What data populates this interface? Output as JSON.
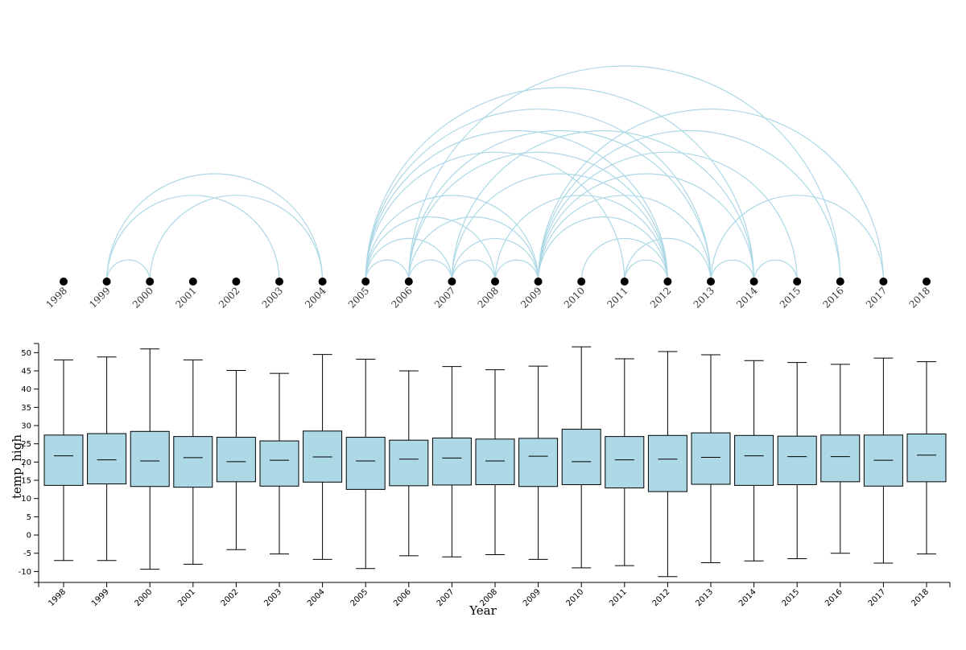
{
  "chart_data": [
    {
      "type": "arc",
      "nodes": [
        "1998",
        "1999",
        "2000",
        "2001",
        "2002",
        "2003",
        "2004",
        "2005",
        "2006",
        "2007",
        "2008",
        "2009",
        "2010",
        "2011",
        "2012",
        "2013",
        "2014",
        "2015",
        "2016",
        "2017",
        "2018"
      ],
      "links": [
        [
          "1999",
          "2000"
        ],
        [
          "1999",
          "2003"
        ],
        [
          "1999",
          "2004"
        ],
        [
          "2000",
          "2004"
        ],
        [
          "2005",
          "2006"
        ],
        [
          "2005",
          "2007"
        ],
        [
          "2005",
          "2008"
        ],
        [
          "2005",
          "2009"
        ],
        [
          "2005",
          "2011"
        ],
        [
          "2005",
          "2012"
        ],
        [
          "2005",
          "2013"
        ],
        [
          "2005",
          "2014"
        ],
        [
          "2006",
          "2007"
        ],
        [
          "2006",
          "2009"
        ],
        [
          "2006",
          "2012"
        ],
        [
          "2006",
          "2013"
        ],
        [
          "2006",
          "2016"
        ],
        [
          "2007",
          "2008"
        ],
        [
          "2007",
          "2009"
        ],
        [
          "2007",
          "2012"
        ],
        [
          "2007",
          "2014"
        ],
        [
          "2008",
          "2009"
        ],
        [
          "2008",
          "2012"
        ],
        [
          "2009",
          "2012"
        ],
        [
          "2009",
          "2013"
        ],
        [
          "2009",
          "2014"
        ],
        [
          "2009",
          "2015"
        ],
        [
          "2009",
          "2016"
        ],
        [
          "2009",
          "2017"
        ],
        [
          "2010",
          "2012"
        ],
        [
          "2011",
          "2012"
        ],
        [
          "2011",
          "2013"
        ],
        [
          "2013",
          "2014"
        ],
        [
          "2013",
          "2017"
        ],
        [
          "2014",
          "2015"
        ]
      ],
      "node_color": "#000000",
      "link_color": "#add8e6"
    },
    {
      "type": "box",
      "categories": [
        "1998",
        "1999",
        "2000",
        "2001",
        "2002",
        "2003",
        "2004",
        "2005",
        "2006",
        "2007",
        "2008",
        "2009",
        "2010",
        "2011",
        "2012",
        "2013",
        "2014",
        "2015",
        "2016",
        "2017",
        "2018"
      ],
      "boxes": [
        {
          "min": -7.0,
          "q1": 13.6,
          "median": 21.7,
          "q3": 27.4,
          "max": 48.0
        },
        {
          "min": -7.0,
          "q1": 14.0,
          "median": 20.6,
          "q3": 27.8,
          "max": 48.8
        },
        {
          "min": -9.4,
          "q1": 13.3,
          "median": 20.3,
          "q3": 28.4,
          "max": 51.0
        },
        {
          "min": -8.0,
          "q1": 13.1,
          "median": 21.2,
          "q3": 27.0,
          "max": 48.0
        },
        {
          "min": -4.0,
          "q1": 14.6,
          "median": 20.1,
          "q3": 26.8,
          "max": 45.1
        },
        {
          "min": -5.2,
          "q1": 13.4,
          "median": 20.5,
          "q3": 25.8,
          "max": 44.3
        },
        {
          "min": -6.7,
          "q1": 14.5,
          "median": 21.4,
          "q3": 28.5,
          "max": 49.5
        },
        {
          "min": -9.2,
          "q1": 12.5,
          "median": 20.3,
          "q3": 26.8,
          "max": 48.2
        },
        {
          "min": -5.7,
          "q1": 13.5,
          "median": 20.8,
          "q3": 26.0,
          "max": 45.0
        },
        {
          "min": -6.0,
          "q1": 13.7,
          "median": 21.1,
          "q3": 26.6,
          "max": 46.2
        },
        {
          "min": -5.4,
          "q1": 13.8,
          "median": 20.3,
          "q3": 26.3,
          "max": 45.3
        },
        {
          "min": -6.7,
          "q1": 13.3,
          "median": 21.6,
          "q3": 26.5,
          "max": 46.3
        },
        {
          "min": -9.0,
          "q1": 13.8,
          "median": 20.1,
          "q3": 29.0,
          "max": 51.6
        },
        {
          "min": -8.4,
          "q1": 12.9,
          "median": 20.6,
          "q3": 27.0,
          "max": 48.3
        },
        {
          "min": -11.4,
          "q1": 11.9,
          "median": 20.8,
          "q3": 27.3,
          "max": 50.3
        },
        {
          "min": -7.6,
          "q1": 13.9,
          "median": 21.3,
          "q3": 28.0,
          "max": 49.4
        },
        {
          "min": -7.1,
          "q1": 13.6,
          "median": 21.7,
          "q3": 27.3,
          "max": 47.8
        },
        {
          "min": -6.5,
          "q1": 13.8,
          "median": 21.5,
          "q3": 27.1,
          "max": 47.3
        },
        {
          "min": -5.0,
          "q1": 14.6,
          "median": 21.5,
          "q3": 27.4,
          "max": 46.8
        },
        {
          "min": -7.7,
          "q1": 13.4,
          "median": 20.5,
          "q3": 27.4,
          "max": 48.5
        },
        {
          "min": -5.2,
          "q1": 14.6,
          "median": 21.9,
          "q3": 27.7,
          "max": 47.5
        }
      ],
      "xlabel": "Year",
      "ylabel": "temp_high",
      "ylim": [
        -13,
        52.5
      ],
      "yticks": [
        -10,
        -5,
        0,
        5,
        10,
        15,
        20,
        25,
        30,
        35,
        40,
        45,
        50
      ],
      "box_color": "#add8e6"
    }
  ]
}
